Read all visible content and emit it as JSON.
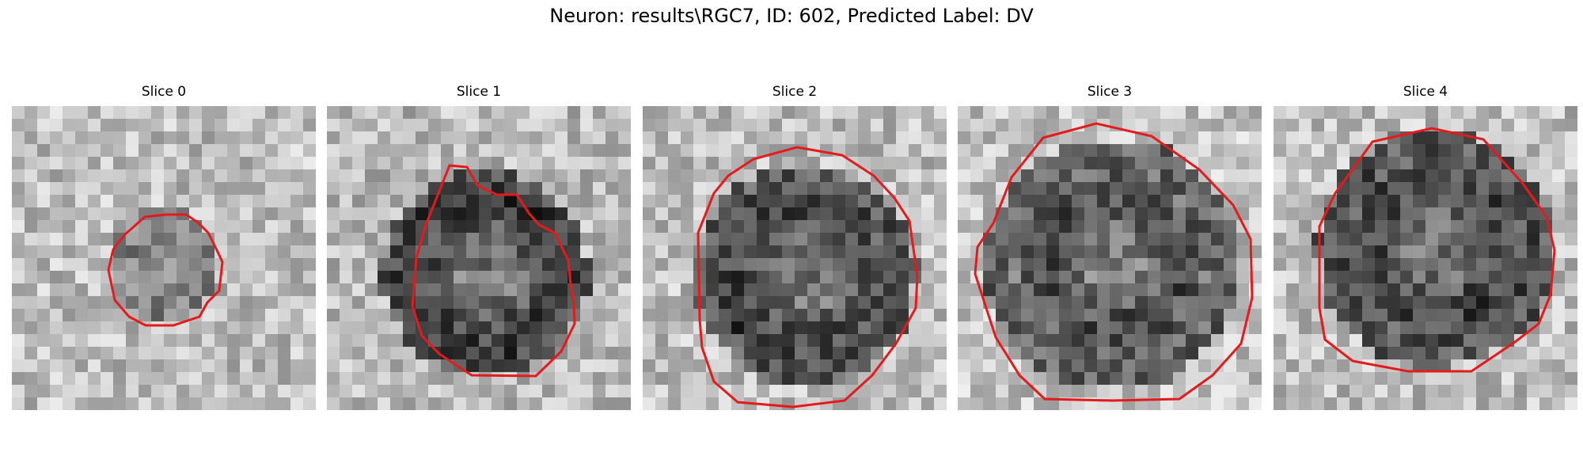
{
  "figure": {
    "title": "Neuron: results\\RGC7, ID: 602, Predicted Label: DV"
  },
  "panels": [
    {
      "title": "Slice 0"
    },
    {
      "title": "Slice 1"
    },
    {
      "title": "Slice 2"
    },
    {
      "title": "Slice 3"
    },
    {
      "title": "Slice 4"
    }
  ],
  "colors": {
    "contour": "#e41a1c",
    "background": "#ffffff"
  }
}
